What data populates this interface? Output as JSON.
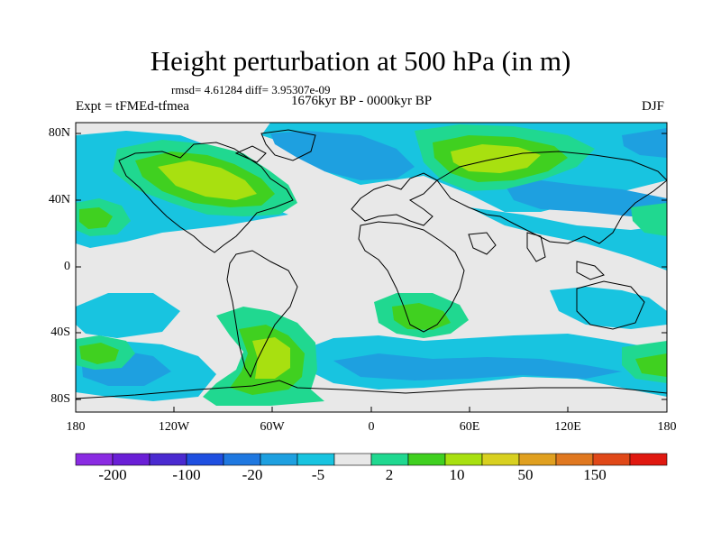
{
  "title": "Height perturbation at 500 hPa (in m)",
  "stats": "rmsd= 4.61284 diff= 3.95307e-09",
  "experiment": "Expt = tFMEd-tfmea",
  "period": "1676kyr BP - 0000kyr BP",
  "season": "DJF",
  "lat_ticks": [
    "80N",
    "40N",
    "0",
    "40S",
    "80S"
  ],
  "lon_ticks": [
    "180",
    "120W",
    "60W",
    "0",
    "60E",
    "120E",
    "180"
  ],
  "colorbar": {
    "labels": [
      "-200",
      "-100",
      "-20",
      "-5",
      "2",
      "10",
      "50",
      "150"
    ],
    "colors": [
      "#8a2be2",
      "#6a1fd6",
      "#4a2ad0",
      "#1f4fe0",
      "#1f78e0",
      "#1ea0e0",
      "#18c4e0",
      "#e8e8e8",
      "#20d890",
      "#40d020",
      "#a8e010",
      "#d8d020",
      "#e0a020",
      "#e07820",
      "#e04818",
      "#e01810"
    ]
  },
  "fill_colors": {
    "background": "#e8e8e8",
    "light_blue": "#18c4e0",
    "mid_blue": "#1ea0e0",
    "teal": "#20d890",
    "green": "#40d020",
    "yellow_green": "#a8e010",
    "coastline": "#000000"
  }
}
